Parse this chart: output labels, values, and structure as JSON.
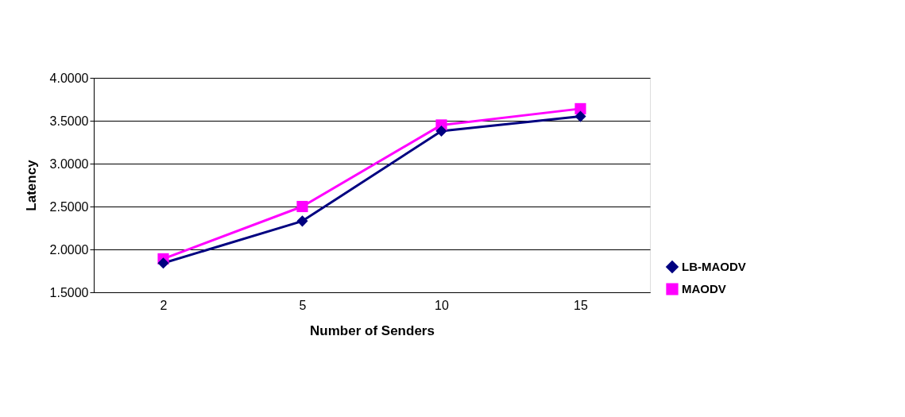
{
  "chart_data": {
    "type": "line",
    "xlabel": "Number of Senders",
    "ylabel": "Latency",
    "categories": [
      "2",
      "5",
      "10",
      "15"
    ],
    "series": [
      {
        "name": "LB-MAODV",
        "color": "#000080",
        "marker": "diamond",
        "values": [
          1.84,
          2.33,
          3.38,
          3.55
        ]
      },
      {
        "name": "MAODV",
        "color": "#ff00ff",
        "marker": "square",
        "values": [
          1.89,
          2.5,
          3.45,
          3.64
        ]
      }
    ],
    "ylim": [
      1.5,
      4.0
    ],
    "yticks": [
      {
        "value": 1.5,
        "label": "1.5000"
      },
      {
        "value": 2.0,
        "label": "2.0000"
      },
      {
        "value": 2.5,
        "label": "2.5000"
      },
      {
        "value": 3.0,
        "label": "3.0000"
      },
      {
        "value": 3.5,
        "label": "3.5000"
      },
      {
        "value": 4.0,
        "label": "4.0000"
      }
    ],
    "grid": "y",
    "legend": "bottom right",
    "line_style": "solid"
  }
}
